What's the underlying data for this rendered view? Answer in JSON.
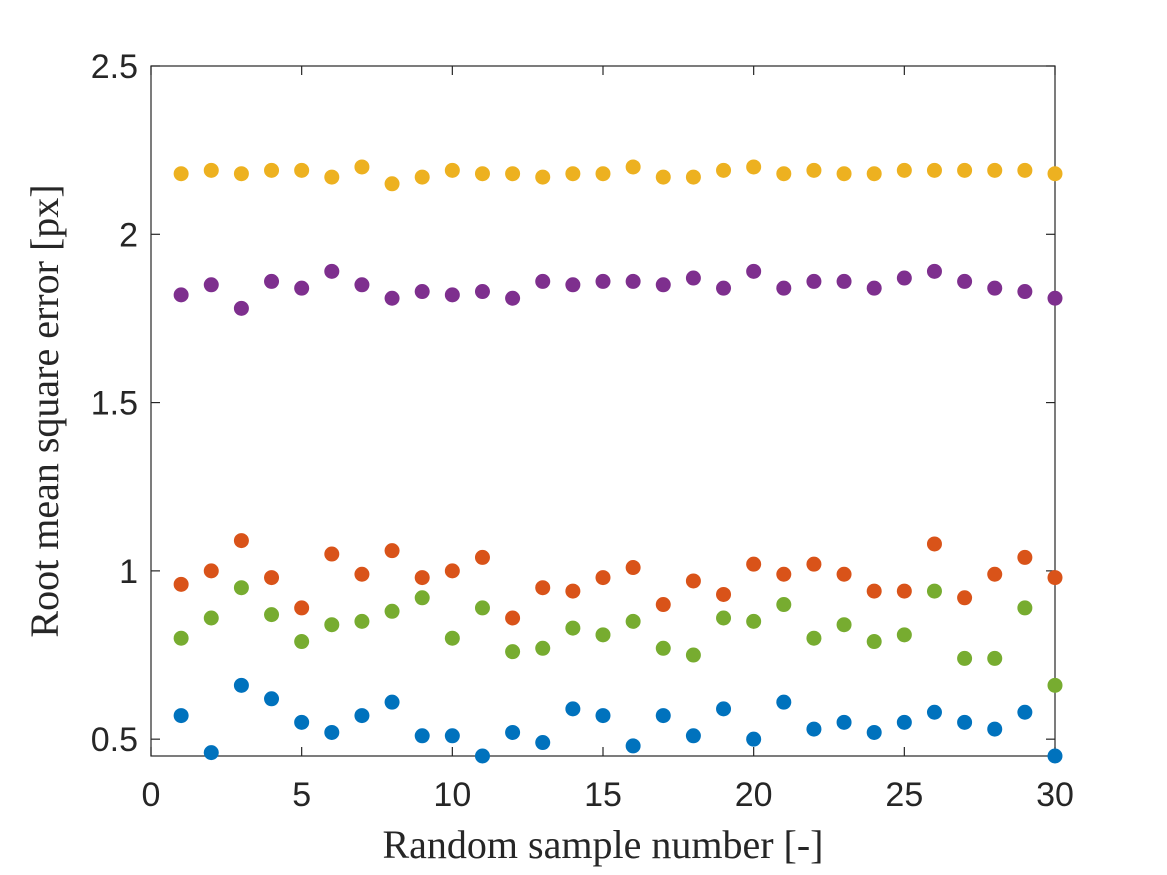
{
  "chart_data": {
    "type": "scatter",
    "title": "",
    "xlabel": "Random sample number [-]",
    "ylabel": "Root mean square error [px]",
    "xlim": [
      0,
      30
    ],
    "ylim": [
      0.45,
      2.5
    ],
    "xticks": [
      0,
      5,
      10,
      15,
      20,
      25,
      30
    ],
    "xtick_labels": [
      "0",
      "5",
      "10",
      "15",
      "20",
      "25",
      "30"
    ],
    "yticks": [
      0.5,
      1,
      1.5,
      2,
      2.5
    ],
    "ytick_labels": [
      "0.5",
      "1",
      "1.5",
      "2",
      "2.5"
    ],
    "grid": false,
    "legend": "none",
    "x": [
      1,
      2,
      3,
      4,
      5,
      6,
      7,
      8,
      9,
      10,
      11,
      12,
      13,
      14,
      15,
      16,
      17,
      18,
      19,
      20,
      21,
      22,
      23,
      24,
      25,
      26,
      27,
      28,
      29,
      30
    ],
    "series": [
      {
        "color": "#0072BD",
        "values": [
          0.57,
          0.46,
          0.66,
          0.62,
          0.55,
          0.52,
          0.57,
          0.61,
          0.51,
          0.51,
          0.45,
          0.52,
          0.49,
          0.59,
          0.57,
          0.48,
          0.57,
          0.51,
          0.59,
          0.5,
          0.61,
          0.53,
          0.55,
          0.52,
          0.55,
          0.58,
          0.55,
          0.53,
          0.58,
          0.45
        ]
      },
      {
        "color": "#D95319",
        "values": [
          0.96,
          1.0,
          1.09,
          0.98,
          0.89,
          1.05,
          0.99,
          1.06,
          0.98,
          1.0,
          1.04,
          0.86,
          0.95,
          0.94,
          0.98,
          1.01,
          0.9,
          0.97,
          0.93,
          1.02,
          0.99,
          1.02,
          0.99,
          0.94,
          0.94,
          1.08,
          0.92,
          0.99,
          1.04,
          0.98
        ]
      },
      {
        "color": "#EDB120",
        "values": [
          2.18,
          2.19,
          2.18,
          2.19,
          2.19,
          2.17,
          2.2,
          2.15,
          2.17,
          2.19,
          2.18,
          2.18,
          2.17,
          2.18,
          2.18,
          2.2,
          2.17,
          2.17,
          2.19,
          2.2,
          2.18,
          2.19,
          2.18,
          2.18,
          2.19,
          2.19,
          2.19,
          2.19,
          2.19,
          2.18
        ]
      },
      {
        "color": "#7E2F8E",
        "values": [
          1.82,
          1.85,
          1.78,
          1.86,
          1.84,
          1.89,
          1.85,
          1.81,
          1.83,
          1.82,
          1.83,
          1.81,
          1.86,
          1.85,
          1.86,
          1.86,
          1.85,
          1.87,
          1.84,
          1.89,
          1.84,
          1.86,
          1.86,
          1.84,
          1.87,
          1.89,
          1.86,
          1.84,
          1.83,
          1.81
        ]
      },
      {
        "color": "#77AC30",
        "values": [
          0.8,
          0.86,
          0.95,
          0.87,
          0.79,
          0.84,
          0.85,
          0.88,
          0.92,
          0.8,
          0.89,
          0.76,
          0.77,
          0.83,
          0.81,
          0.85,
          0.77,
          0.75,
          0.86,
          0.85,
          0.9,
          0.8,
          0.84,
          0.79,
          0.81,
          0.94,
          0.74,
          0.74,
          0.89,
          0.66
        ]
      }
    ]
  }
}
